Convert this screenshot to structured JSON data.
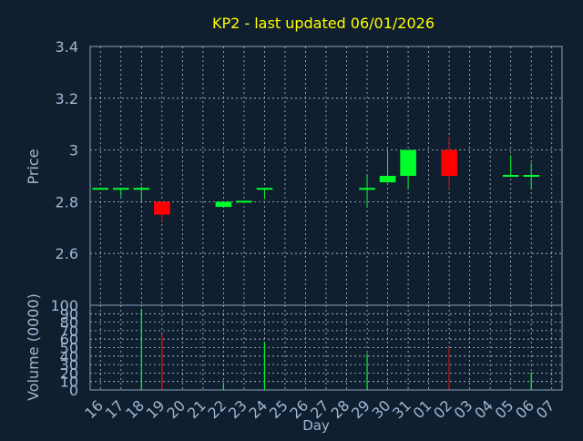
{
  "title": "KP2 - last updated 06/01/2026",
  "colors": {
    "background": "#0f1f30",
    "title": "#ffff00",
    "axis_text": "#9fb7d3",
    "xlabel": "#9fb7d3",
    "grid": "#b7c6d6",
    "plot_border": "#8aa0b8",
    "up": "#00ff2a",
    "down": "#ff0000",
    "neutral": "#00ff2a"
  },
  "chart_data": [
    {
      "type": "candlestick",
      "ylabel": "Price",
      "ylim": [
        2.4,
        3.4
      ],
      "yticks": [
        "3.4",
        "3.2",
        "3",
        "2.8",
        "2.6"
      ],
      "grid": true,
      "candles": [
        {
          "day": "16",
          "open": 2.85,
          "high": 2.85,
          "low": 2.85,
          "close": 2.85
        },
        {
          "day": "17",
          "open": 2.85,
          "high": 2.85,
          "low": 2.82,
          "close": 2.85
        },
        {
          "day": "18",
          "open": 2.85,
          "high": 2.86,
          "low": 2.8,
          "close": 2.85
        },
        {
          "day": "19",
          "open": 2.8,
          "high": 2.8,
          "low": 2.72,
          "close": 2.75
        },
        {
          "day": "22",
          "open": 2.78,
          "high": 2.8,
          "low": 2.78,
          "close": 2.8
        },
        {
          "day": "23",
          "open": 2.8,
          "high": 2.8,
          "low": 2.8,
          "close": 2.8
        },
        {
          "day": "24",
          "open": 2.85,
          "high": 2.85,
          "low": 2.81,
          "close": 2.85
        },
        {
          "day": "29",
          "open": 2.85,
          "high": 2.9,
          "low": 2.78,
          "close": 2.85
        },
        {
          "day": "30",
          "open": 2.875,
          "high": 3.0,
          "low": 2.875,
          "close": 2.9
        },
        {
          "day": "31",
          "open": 2.9,
          "high": 3.0,
          "low": 2.85,
          "close": 3.0
        },
        {
          "day": "02",
          "open": 3.0,
          "high": 3.05,
          "low": 2.85,
          "close": 2.9
        },
        {
          "day": "05",
          "open": 2.9,
          "high": 2.98,
          "low": 2.9,
          "close": 2.9
        },
        {
          "day": "06",
          "open": 2.9,
          "high": 2.95,
          "low": 2.85,
          "close": 2.9
        }
      ]
    },
    {
      "type": "bar",
      "ylabel": "Volume (0000)",
      "xlabel": "Day",
      "ylim": [
        0,
        100
      ],
      "yticks": [
        "100",
        "90",
        "80",
        "70",
        "60",
        "50",
        "40",
        "30",
        "20",
        "10",
        "0"
      ],
      "grid": true,
      "categories": [
        "16",
        "17",
        "18",
        "19",
        "20",
        "21",
        "22",
        "23",
        "24",
        "25",
        "26",
        "27",
        "28",
        "29",
        "30",
        "31",
        "01",
        "02",
        "03",
        "04",
        "05",
        "06",
        "07"
      ],
      "bars": [
        {
          "day": "18",
          "value": 96,
          "direction": "up"
        },
        {
          "day": "19",
          "value": 65,
          "direction": "down"
        },
        {
          "day": "22",
          "value": 8,
          "direction": "up"
        },
        {
          "day": "24",
          "value": 57,
          "direction": "up"
        },
        {
          "day": "29",
          "value": 43,
          "direction": "up"
        },
        {
          "day": "02",
          "value": 50,
          "direction": "down"
        },
        {
          "day": "06",
          "value": 21,
          "direction": "up"
        }
      ]
    }
  ]
}
